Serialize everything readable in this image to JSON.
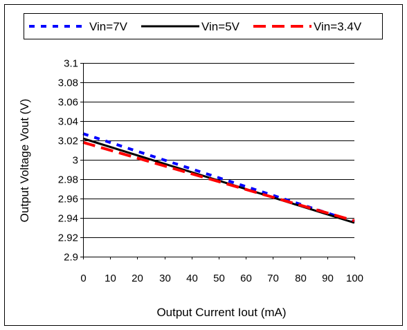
{
  "chart_data": {
    "type": "line",
    "title": "",
    "xlabel": "Output Current Iout (mA)",
    "ylabel": "Output Voltage Vout (V)",
    "xlim": [
      0,
      100
    ],
    "ylim": [
      2.9,
      3.1
    ],
    "x_ticks": [
      0,
      10,
      20,
      30,
      40,
      50,
      60,
      70,
      80,
      90,
      100
    ],
    "x_tick_labels": [
      "0",
      "10",
      "20",
      "30",
      "40",
      "50",
      "60",
      "70",
      "80",
      "90",
      "100"
    ],
    "y_ticks": [
      2.9,
      2.92,
      2.94,
      2.96,
      2.98,
      3.0,
      3.02,
      3.04,
      3.06,
      3.08,
      3.1
    ],
    "y_tick_labels": [
      "2.9",
      "2.92",
      "2.94",
      "2.96",
      "2.98",
      "3",
      "3.02",
      "3.04",
      "3.06",
      "3.08",
      "3.1"
    ],
    "grid": "horizontal",
    "legend_position": "top",
    "series": [
      {
        "name": "Vin=7V",
        "color": "#0000ff",
        "dash": "dotted",
        "x": [
          0,
          100
        ],
        "y": [
          3.027,
          2.936
        ]
      },
      {
        "name": "Vin=5V",
        "color": "#000000",
        "dash": "solid",
        "x": [
          0,
          100
        ],
        "y": [
          3.022,
          2.935
        ]
      },
      {
        "name": "Vin=3.4V",
        "color": "#ff0000",
        "dash": "dashed",
        "x": [
          0,
          100
        ],
        "y": [
          3.018,
          2.937
        ]
      }
    ]
  }
}
